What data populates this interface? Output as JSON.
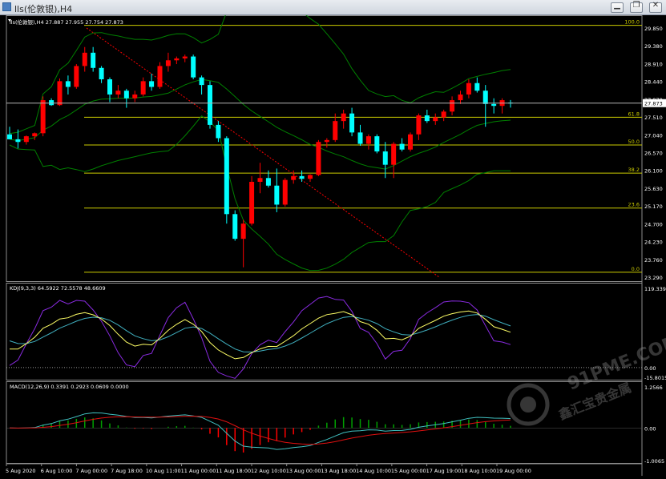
{
  "window": {
    "title": "lls(伦敦银),H4",
    "buttons": {
      "minimize": "▁",
      "restore": "❐",
      "close": "✕"
    }
  },
  "watermark": {
    "text": "91PME.COM",
    "subtext": "鑫汇宝贵金属"
  },
  "colors": {
    "bull": "#ff0000",
    "bear": "#00ffff",
    "bands": "#008000",
    "fib": "#cccc00",
    "k_line": "#ffff66",
    "d_line": "#40b0c0",
    "j_line": "#8a2be2",
    "macd_main": "#40c0c0",
    "macd_signal": "#e01010",
    "hist_up": "#00a000",
    "hist_down": "#ff0000",
    "trend": "#ff0000"
  },
  "panes": {
    "price": {
      "header": "lls(伦敦银),H4  27.887 27.955 27.754 27.873",
      "current_price": "27.873",
      "y_labels": [
        "29.850",
        "29.380",
        "28.910",
        "28.440",
        "27.970",
        "27.510",
        "27.040",
        "26.570",
        "26.100",
        "25.630",
        "25.170",
        "24.700",
        "24.230",
        "23.760",
        "23.290"
      ]
    },
    "kdj": {
      "header": "KDJ(9,3,3) 64.5922 72.5578 48.6609",
      "y_labels": [
        "119.3391",
        "0.00",
        "-15.8015"
      ]
    },
    "macd": {
      "header": "MACD(12,26,9) 0.3391 0.2923 0.0609 0.0000",
      "y_labels": [
        "1.2566",
        "0.00",
        "-1.0065"
      ]
    }
  },
  "fib_levels": [
    {
      "label": "100.0",
      "price": 29.92
    },
    {
      "label": "61.8",
      "price": 27.5
    },
    {
      "label": "50.0",
      "price": 26.77
    },
    {
      "label": "38.2",
      "price": 26.03
    },
    {
      "label": "23.6",
      "price": 25.11
    },
    {
      "label": "0.0",
      "price": 23.42
    }
  ],
  "x_labels": [
    "5 Aug 2020",
    "6 Aug 10:00",
    "7 Aug 00:00",
    "7 Aug 18:00",
    "10 Aug 11:00",
    "11 Aug 00:00",
    "11 Aug 18:00",
    "12 Aug 10:00",
    "13 Aug 00:00",
    "13 Aug 18:00",
    "14 Aug 10:00",
    "15 Aug 00:00",
    "17 Aug 19:00",
    "18 Aug 10:00",
    "19 Aug 00:00"
  ],
  "chart_data": {
    "type": "candlestick",
    "symbol": "lls(伦敦银)",
    "timeframe": "H4",
    "ylim": [
      23.29,
      29.85
    ],
    "candles": [
      [
        27.05,
        27.25,
        26.95,
        26.92
      ],
      [
        26.92,
        27.18,
        26.68,
        26.85
      ],
      [
        26.85,
        27.02,
        26.78,
        27.0
      ],
      [
        27.0,
        27.1,
        26.9,
        27.08
      ],
      [
        27.08,
        28.05,
        27.0,
        27.95
      ],
      [
        27.95,
        28.0,
        27.8,
        27.82
      ],
      [
        27.82,
        28.52,
        27.8,
        28.45
      ],
      [
        28.45,
        28.6,
        28.1,
        28.3
      ],
      [
        28.3,
        28.9,
        28.25,
        28.85
      ],
      [
        28.85,
        29.35,
        28.7,
        29.2
      ],
      [
        29.2,
        29.35,
        28.7,
        28.8
      ],
      [
        28.8,
        28.85,
        28.4,
        28.5
      ],
      [
        28.5,
        28.55,
        27.9,
        28.1
      ],
      [
        28.1,
        28.35,
        28.0,
        28.2
      ],
      [
        28.2,
        28.25,
        27.75,
        28.0
      ],
      [
        28.0,
        28.2,
        27.9,
        28.1
      ],
      [
        28.1,
        28.55,
        28.05,
        28.45
      ],
      [
        28.45,
        28.65,
        28.2,
        28.3
      ],
      [
        28.3,
        28.95,
        28.25,
        28.85
      ],
      [
        28.85,
        29.2,
        28.7,
        29.0
      ],
      [
        29.0,
        29.1,
        28.9,
        29.05
      ],
      [
        29.05,
        29.15,
        28.95,
        29.1
      ],
      [
        29.1,
        29.15,
        28.5,
        28.55
      ],
      [
        28.55,
        28.6,
        28.1,
        28.35
      ],
      [
        28.35,
        28.45,
        27.2,
        27.3
      ],
      [
        27.3,
        27.4,
        26.85,
        26.95
      ],
      [
        26.95,
        27.0,
        24.7,
        24.95
      ],
      [
        24.95,
        25.05,
        24.25,
        24.3
      ],
      [
        24.3,
        24.8,
        23.55,
        24.7
      ],
      [
        24.7,
        25.95,
        24.65,
        25.8
      ],
      [
        25.8,
        26.3,
        25.5,
        25.9
      ],
      [
        25.9,
        26.1,
        25.65,
        25.7
      ],
      [
        25.7,
        26.15,
        25.0,
        25.2
      ],
      [
        25.2,
        25.9,
        25.15,
        25.85
      ],
      [
        25.85,
        26.1,
        25.75,
        25.95
      ],
      [
        25.95,
        26.1,
        25.8,
        25.88
      ],
      [
        25.88,
        26.0,
        25.8,
        25.98
      ],
      [
        25.98,
        26.9,
        25.95,
        26.85
      ],
      [
        26.85,
        26.95,
        26.7,
        26.9
      ],
      [
        26.9,
        27.6,
        26.85,
        27.4
      ],
      [
        27.4,
        27.7,
        27.2,
        27.6
      ],
      [
        27.6,
        27.75,
        27.0,
        27.1
      ],
      [
        27.1,
        27.3,
        26.75,
        26.8
      ],
      [
        26.8,
        27.05,
        26.65,
        27.0
      ],
      [
        27.0,
        27.05,
        26.55,
        26.6
      ],
      [
        26.6,
        26.85,
        25.9,
        26.25
      ],
      [
        26.25,
        26.85,
        25.9,
        26.8
      ],
      [
        26.8,
        26.95,
        26.6,
        26.65
      ],
      [
        26.65,
        27.1,
        26.6,
        27.05
      ],
      [
        27.05,
        27.6,
        26.9,
        27.55
      ],
      [
        27.55,
        27.7,
        27.35,
        27.4
      ],
      [
        27.4,
        27.6,
        27.3,
        27.5
      ],
      [
        27.5,
        27.7,
        27.4,
        27.65
      ],
      [
        27.65,
        28.05,
        27.55,
        27.95
      ],
      [
        27.95,
        28.2,
        27.85,
        28.1
      ],
      [
        28.1,
        28.5,
        28.0,
        28.4
      ],
      [
        28.4,
        28.55,
        28.15,
        28.2
      ],
      [
        28.2,
        28.35,
        27.25,
        27.85
      ],
      [
        27.85,
        28.0,
        27.6,
        27.8
      ],
      [
        27.8,
        28.0,
        27.6,
        27.95
      ],
      [
        27.887,
        27.955,
        27.754,
        27.873
      ]
    ]
  }
}
